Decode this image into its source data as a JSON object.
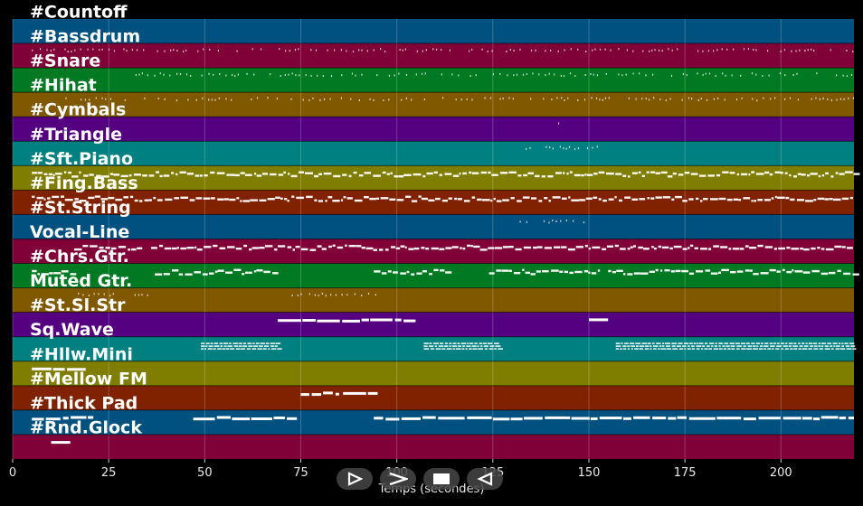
{
  "chart_data": {
    "type": "piano-roll",
    "title": "",
    "xlabel": "Temps (secondes)",
    "ylabel": "",
    "xlim": [
      0,
      219
    ],
    "xticks": [
      0,
      25,
      50,
      75,
      100,
      125,
      150,
      175,
      200
    ],
    "grid": true,
    "tracks": [
      {
        "name": "#Countoff",
        "color": "#005080"
      },
      {
        "name": "#Bassdrum",
        "color": "#800038"
      },
      {
        "name": "#Snare",
        "color": "#007a22"
      },
      {
        "name": "#Hihat",
        "color": "#805800"
      },
      {
        "name": "#Cymbals",
        "color": "#540080"
      },
      {
        "name": "#Triangle",
        "color": "#008080"
      },
      {
        "name": "#Sft.Piano",
        "color": "#807e00"
      },
      {
        "name": "#Fing.Bass",
        "color": "#802200"
      },
      {
        "name": "#St.String",
        "color": "#005080"
      },
      {
        "name": "Vocal-Line",
        "color": "#800038"
      },
      {
        "name": "#Chrs.Gtr.",
        "color": "#007a22"
      },
      {
        "name": "Muted Gtr.",
        "color": "#805800"
      },
      {
        "name": "#St.Sl.Str",
        "color": "#540080"
      },
      {
        "name": "Sq.Wave",
        "color": "#008080"
      },
      {
        "name": "#Hllw.Mini",
        "color": "#807e00"
      },
      {
        "name": "#Mellow FM",
        "color": "#802200"
      },
      {
        "name": "#Thick Pad",
        "color": "#005080"
      },
      {
        "name": "#Rnd.Glock",
        "color": "#800038"
      }
    ],
    "note_regions": [
      {
        "track": 1,
        "start": 5,
        "end": 219,
        "style": "sparse"
      },
      {
        "track": 2,
        "start": 31,
        "end": 219,
        "style": "sparse"
      },
      {
        "track": 3,
        "start": 13,
        "end": 219,
        "style": "sparse"
      },
      {
        "track": 4,
        "start": 126,
        "end": 127,
        "style": "sparse"
      },
      {
        "track": 4,
        "start": 142,
        "end": 143,
        "style": "sparse"
      },
      {
        "track": 5,
        "start": 132,
        "end": 154,
        "style": "sparse"
      },
      {
        "track": 6,
        "start": 5,
        "end": 219,
        "style": "dense"
      },
      {
        "track": 7,
        "start": 5,
        "end": 219,
        "style": "dense"
      },
      {
        "track": 8,
        "start": 132,
        "end": 150,
        "style": "sparse"
      },
      {
        "track": 9,
        "start": 16,
        "end": 34,
        "style": "dense"
      },
      {
        "track": 9,
        "start": 36,
        "end": 219,
        "style": "dense"
      },
      {
        "track": 10,
        "start": 5,
        "end": 16,
        "style": "dense"
      },
      {
        "track": 10,
        "start": 37,
        "end": 69,
        "style": "dense"
      },
      {
        "track": 10,
        "start": 94,
        "end": 113,
        "style": "dense"
      },
      {
        "track": 10,
        "start": 124,
        "end": 153,
        "style": "dense"
      },
      {
        "track": 10,
        "start": 155,
        "end": 219,
        "style": "dense"
      },
      {
        "track": 11,
        "start": 17,
        "end": 35,
        "style": "sparse"
      },
      {
        "track": 11,
        "start": 71,
        "end": 95,
        "style": "sparse"
      },
      {
        "track": 12,
        "start": 69,
        "end": 105,
        "style": "solid"
      },
      {
        "track": 12,
        "start": 150,
        "end": 155,
        "style": "solid"
      },
      {
        "track": 13,
        "start": 49,
        "end": 69,
        "style": "block"
      },
      {
        "track": 13,
        "start": 107,
        "end": 127,
        "style": "block"
      },
      {
        "track": 13,
        "start": 157,
        "end": 219,
        "style": "block"
      },
      {
        "track": 14,
        "start": 5,
        "end": 19,
        "style": "solid"
      },
      {
        "track": 15,
        "start": 75,
        "end": 85,
        "style": "solid"
      },
      {
        "track": 15,
        "start": 86,
        "end": 95,
        "style": "solid"
      },
      {
        "track": 16,
        "start": 5,
        "end": 21,
        "style": "solid"
      },
      {
        "track": 16,
        "start": 47,
        "end": 74,
        "style": "solid"
      },
      {
        "track": 16,
        "start": 94,
        "end": 219,
        "style": "solid"
      },
      {
        "track": 17,
        "start": 10,
        "end": 15,
        "style": "solid"
      }
    ]
  },
  "player": {
    "buttons": [
      {
        "name": "play-button",
        "icon": "play-triangle-icon"
      },
      {
        "name": "forward-button",
        "icon": "chevron-right-icon"
      },
      {
        "name": "stop-button",
        "icon": "stop-square-icon"
      },
      {
        "name": "back-button",
        "icon": "triangle-left-icon"
      }
    ]
  }
}
